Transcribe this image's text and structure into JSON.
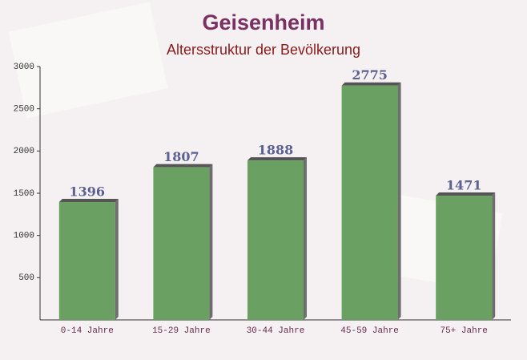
{
  "chart_data": {
    "type": "bar",
    "title": "Geisenheim",
    "subtitle": "Altersstruktur der Bevölkerung",
    "categories": [
      "0-14 Jahre",
      "15-29 Jahre",
      "30-44 Jahre",
      "45-59 Jahre",
      "75+ Jahre"
    ],
    "values": [
      1396,
      1807,
      1888,
      2775,
      1471
    ],
    "color": "#6aa062",
    "ylim": [
      0,
      3000
    ],
    "yticks": [
      500,
      1000,
      1500,
      2000,
      2500,
      3000
    ]
  }
}
